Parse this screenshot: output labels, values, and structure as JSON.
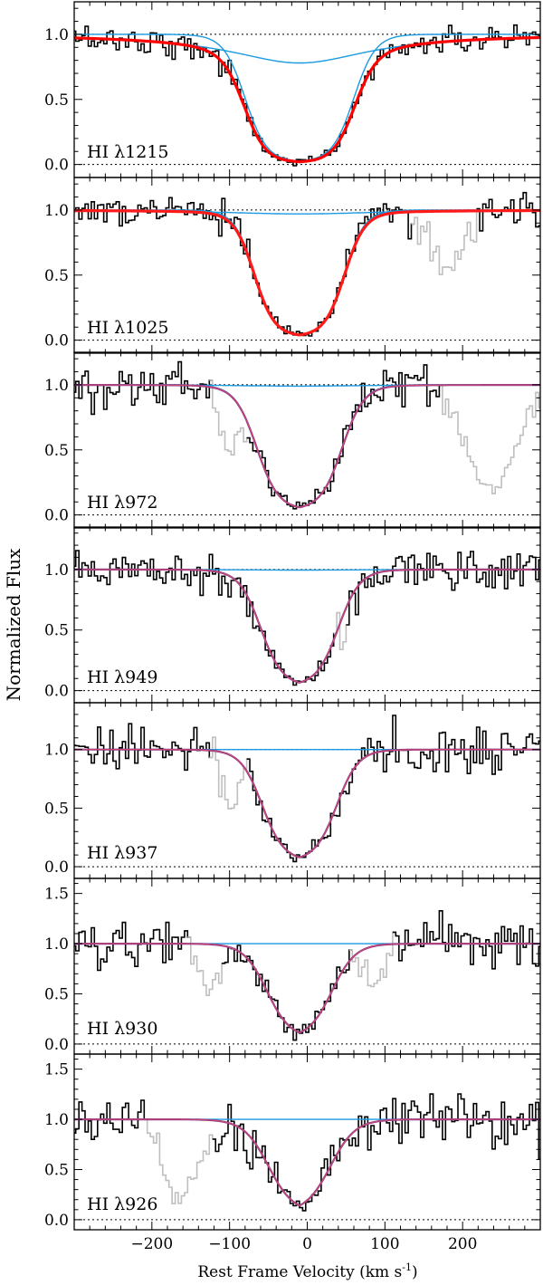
{
  "figure": {
    "ylabel": "Normalized Flux",
    "xlabel": "Rest Frame Velocity (km s",
    "xlabel_sup": "-1",
    "xlabel_close": ")",
    "xticks": [
      "−200",
      "−100",
      "0",
      "100",
      "200"
    ]
  },
  "colors": {
    "data": "#000000",
    "masked": "#bfbfbf",
    "component": "#1a9ae0",
    "total_fit_1215": "#ff0000",
    "total_fit_1025": "#ff1a1a",
    "total_fit_other": "#8b3a8b",
    "axis": "#000000"
  },
  "chart_data": [
    {
      "type": "line",
      "label": "HI λ1215",
      "xlim": [
        -300,
        300
      ],
      "ylim": [
        -0.1,
        1.25
      ],
      "yticks": [
        "0.0",
        "0.5",
        "1.0"
      ],
      "line_center": -10,
      "core_halfwidth": 70,
      "core_sigma": 14,
      "core_floor": 0.02,
      "wing_depth": 0.22,
      "wing_width": 110,
      "total_fit_color": "red",
      "masked_ranges": []
    },
    {
      "type": "line",
      "label": "HI λ1025",
      "xlim": [
        -300,
        300
      ],
      "ylim": [
        -0.1,
        1.25
      ],
      "yticks": [
        "0.0",
        "0.5",
        "1.0"
      ],
      "line_center": -10,
      "core_halfwidth": 58,
      "core_sigma": 13,
      "core_floor": 0.03,
      "wing_depth": 0.03,
      "wing_width": 120,
      "total_fit_color": "red",
      "masked_ranges": [
        [
          140,
          220
        ]
      ]
    },
    {
      "type": "line",
      "label": "HI λ972",
      "xlim": [
        -300,
        300
      ],
      "ylim": [
        -0.1,
        1.25
      ],
      "yticks": [
        "0.0",
        "0.5",
        "1.0"
      ],
      "line_center": -10,
      "core_halfwidth": 55,
      "core_sigma": 14,
      "core_floor": 0.04,
      "wing_depth": 0.01,
      "wing_width": 100,
      "total_fit_color": "purple",
      "masked_ranges": [
        [
          -120,
          -75
        ],
        [
          175,
          300
        ]
      ]
    },
    {
      "type": "line",
      "label": "HI λ949",
      "xlim": [
        -300,
        300
      ],
      "ylim": [
        -0.1,
        1.35
      ],
      "yticks": [
        "0.0",
        "0.5",
        "1.0"
      ],
      "line_center": -10,
      "core_halfwidth": 50,
      "core_sigma": 14,
      "core_floor": 0.04,
      "wing_depth": 0.005,
      "wing_width": 100,
      "total_fit_color": "purple",
      "masked_ranges": [
        [
          40,
          55
        ]
      ]
    },
    {
      "type": "line",
      "label": "HI λ937",
      "xlim": [
        -300,
        300
      ],
      "ylim": [
        -0.1,
        1.4
      ],
      "yticks": [
        "0.0",
        "0.5",
        "1.0"
      ],
      "line_center": -10,
      "core_halfwidth": 48,
      "core_sigma": 14,
      "core_floor": 0.05,
      "wing_depth": 0.0,
      "wing_width": 100,
      "total_fit_color": "purple",
      "masked_ranges": [
        [
          -120,
          -75
        ]
      ]
    },
    {
      "type": "line",
      "label": "HI λ930",
      "xlim": [
        -300,
        300
      ],
      "ylim": [
        -0.1,
        1.65
      ],
      "yticks": [
        "0.0",
        "0.5",
        "1.0",
        "1.5"
      ],
      "line_center": -10,
      "core_halfwidth": 42,
      "core_sigma": 15,
      "core_floor": 0.06,
      "wing_depth": 0.0,
      "wing_width": 100,
      "total_fit_color": "purple",
      "masked_ranges": [
        [
          -150,
          -105
        ],
        [
          60,
          115
        ]
      ]
    },
    {
      "type": "line",
      "label": "HI λ926",
      "xlim": [
        -300,
        300
      ],
      "ylim": [
        -0.1,
        1.65
      ],
      "yticks": [
        "0.0",
        "0.5",
        "1.0",
        "1.5"
      ],
      "line_center": -10,
      "core_halfwidth": 40,
      "core_sigma": 16,
      "core_floor": 0.07,
      "wing_depth": 0.0,
      "wing_width": 100,
      "total_fit_color": "purple",
      "masked_ranges": [
        [
          -205,
          -120
        ]
      ]
    }
  ]
}
